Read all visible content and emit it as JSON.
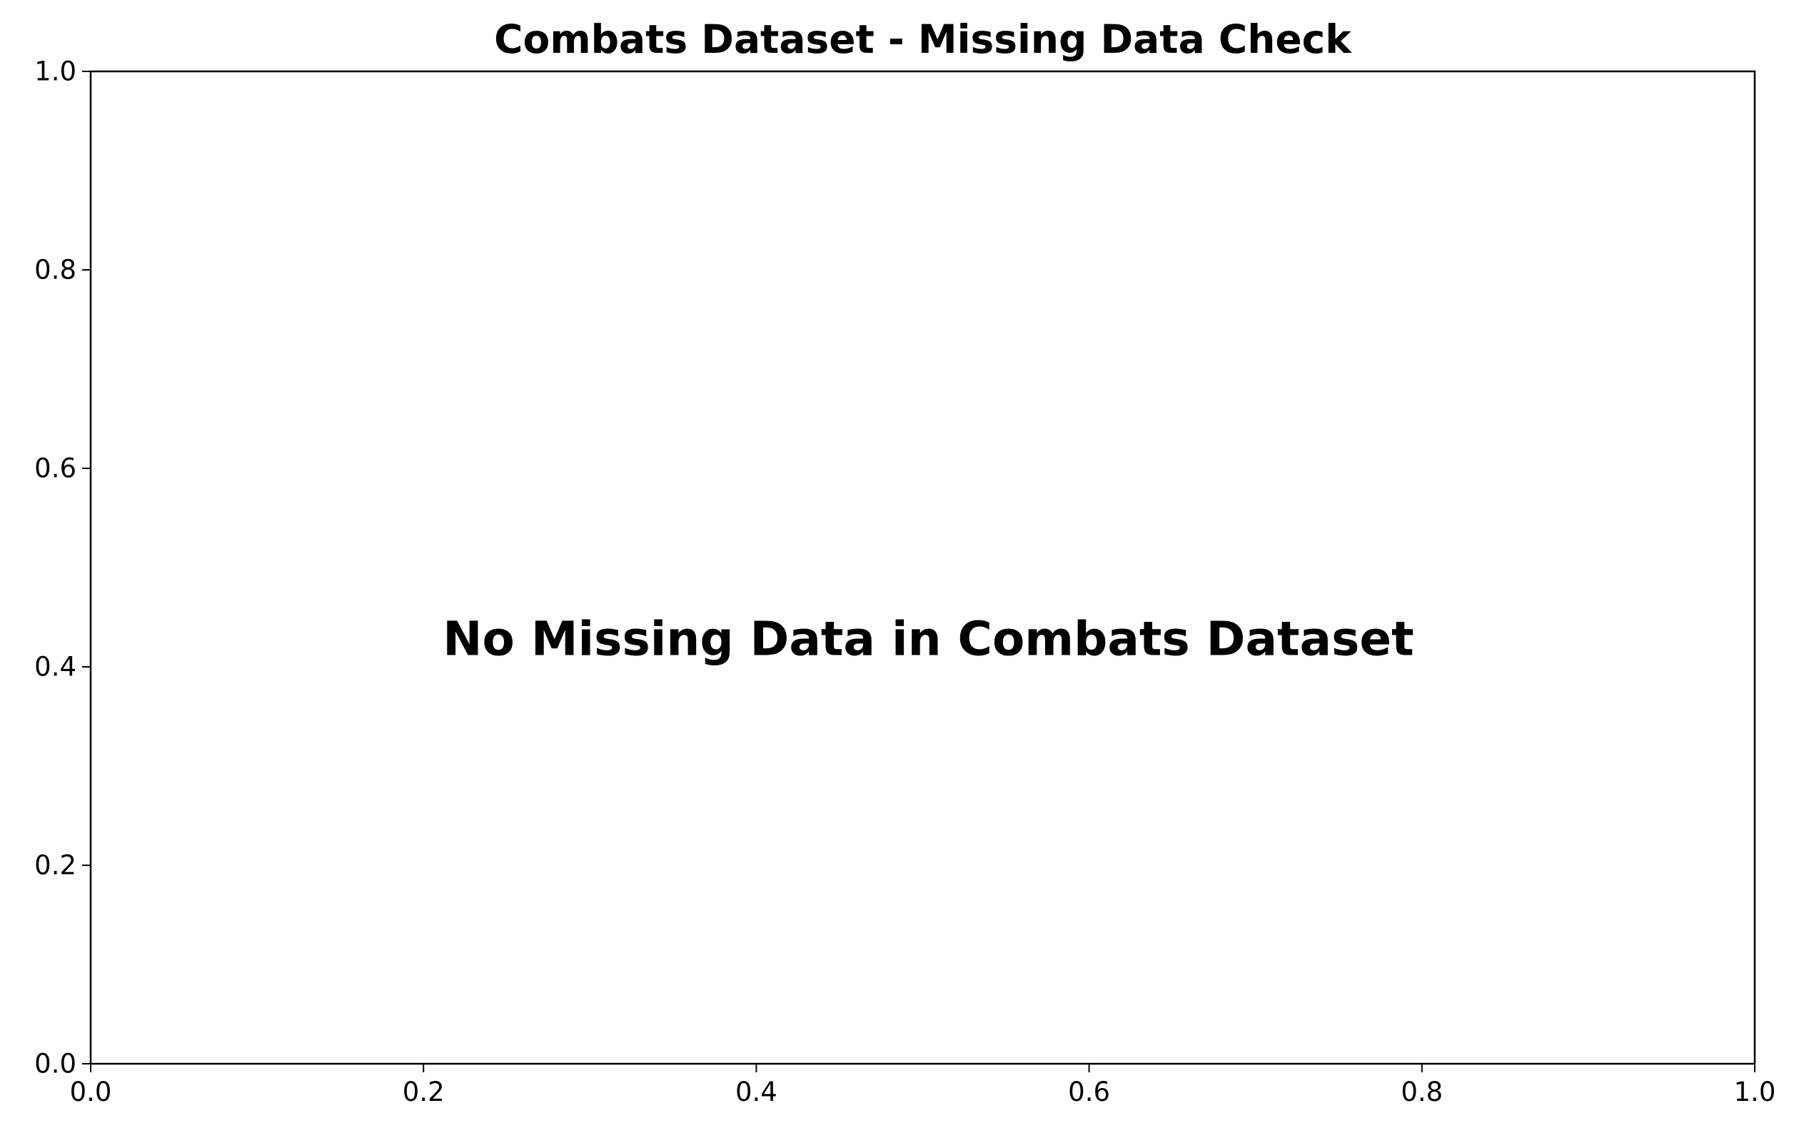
{
  "chart_data": {
    "type": "scatter",
    "title": "Combats Dataset - Missing Data Check",
    "xlabel": "",
    "ylabel": "",
    "xlim": [
      0.0,
      1.0
    ],
    "ylim": [
      0.0,
      1.0
    ],
    "x_ticks": [
      "0.0",
      "0.2",
      "0.4",
      "0.6",
      "0.8",
      "1.0"
    ],
    "y_ticks": [
      "0.0",
      "0.2",
      "0.4",
      "0.6",
      "0.8",
      "1.0"
    ],
    "grid": false,
    "series": [],
    "annotation": {
      "text": "No Missing Data in Combats Dataset",
      "x": 0.5,
      "y": 0.5
    }
  }
}
